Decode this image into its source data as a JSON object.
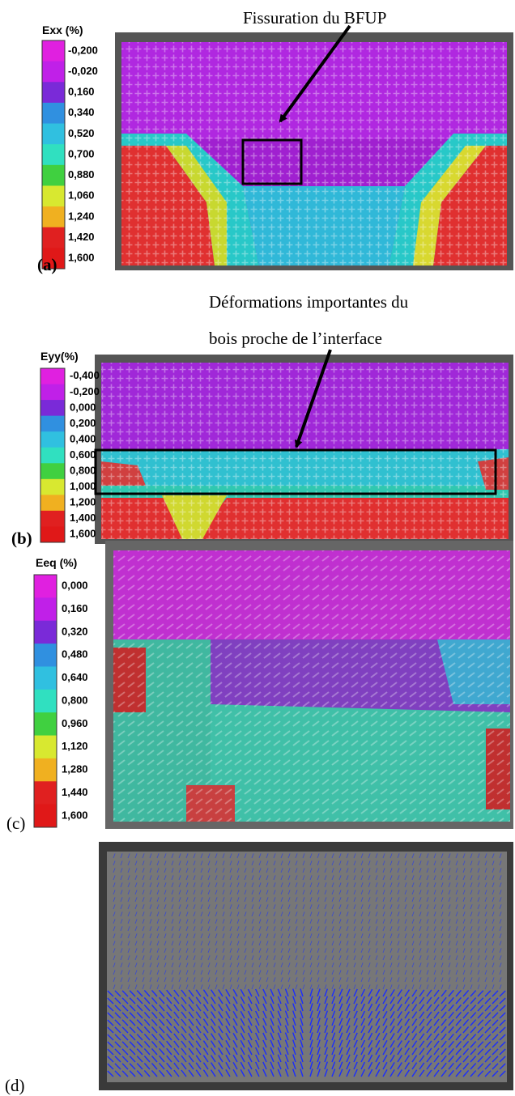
{
  "panels": [
    {
      "label": "(a)",
      "annotation": [
        "Fissuration du BFUP"
      ],
      "colorbar": {
        "title": "Exx (%)",
        "labels": [
          "-0,200",
          "-0,020",
          "0,160",
          "0,340",
          "0,520",
          "0,700",
          "0,880",
          "1,060",
          "1,240",
          "1,420",
          "1,600"
        ]
      }
    },
    {
      "label": "(b)",
      "annotation": [
        "Déformations importantes du",
        "bois proche de l’interface"
      ],
      "colorbar": {
        "title": "Eyy(%)",
        "labels": [
          "-0,400",
          "-0,200",
          "0,000",
          "0,200",
          "0,400",
          "0,600",
          "0,800",
          "1,000",
          "1,200",
          "1,400",
          "1,600"
        ]
      }
    },
    {
      "label": "(c)",
      "colorbar": {
        "title": "Eeq (%)",
        "labels": [
          "0,000",
          "0,160",
          "0,320",
          "0,480",
          "0,640",
          "0,800",
          "0,960",
          "1,120",
          "1,280",
          "1,440",
          "1,600"
        ]
      }
    },
    {
      "label": "(d)"
    }
  ]
}
